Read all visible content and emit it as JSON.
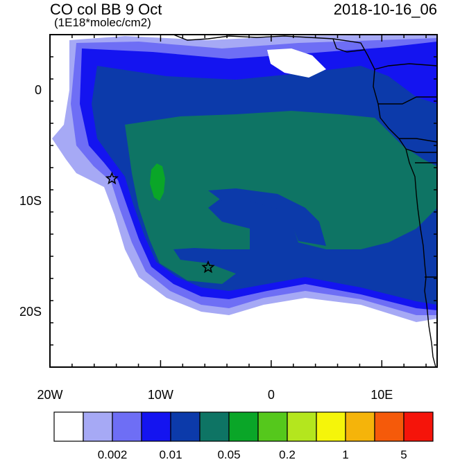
{
  "header": {
    "title": "CO col BB 9 Oct",
    "units": "(1E18*molec/cm2)",
    "datetime": "2018-10-16_06"
  },
  "map": {
    "lon_range": [
      -20,
      15
    ],
    "lat_range": [
      -25,
      5
    ],
    "x_ticks": [
      {
        "lon": -20,
        "label": "20W"
      },
      {
        "lon": -10,
        "label": "10W"
      },
      {
        "lon": 0,
        "label": "0"
      },
      {
        "lon": 10,
        "label": "10E"
      }
    ],
    "y_ticks": [
      {
        "lat": 0,
        "label": "0"
      },
      {
        "lat": -10,
        "label": "10S"
      },
      {
        "lat": -20,
        "label": "20S"
      }
    ],
    "markers": [
      {
        "name": "star-marker-1",
        "lon": -14.4,
        "lat": -8.0
      },
      {
        "name": "star-marker-2",
        "lon": -5.7,
        "lat": -16.0
      }
    ]
  },
  "colorbar": {
    "colors": [
      "#ffffff",
      "#a6a9f5",
      "#6e6ef5",
      "#1414f0",
      "#0c3aaa",
      "#0e7464",
      "#0aa628",
      "#55c81c",
      "#b4e61e",
      "#f5f50a",
      "#f5b40a",
      "#f55a0a",
      "#f5140a"
    ],
    "labels": [
      {
        "boundary": 2,
        "text": "0.002"
      },
      {
        "boundary": 4,
        "text": "0.01"
      },
      {
        "boundary": 6,
        "text": "0.05"
      },
      {
        "boundary": 8,
        "text": "0.2"
      },
      {
        "boundary": 10,
        "text": "1"
      },
      {
        "boundary": 12,
        "text": "5"
      }
    ]
  }
}
